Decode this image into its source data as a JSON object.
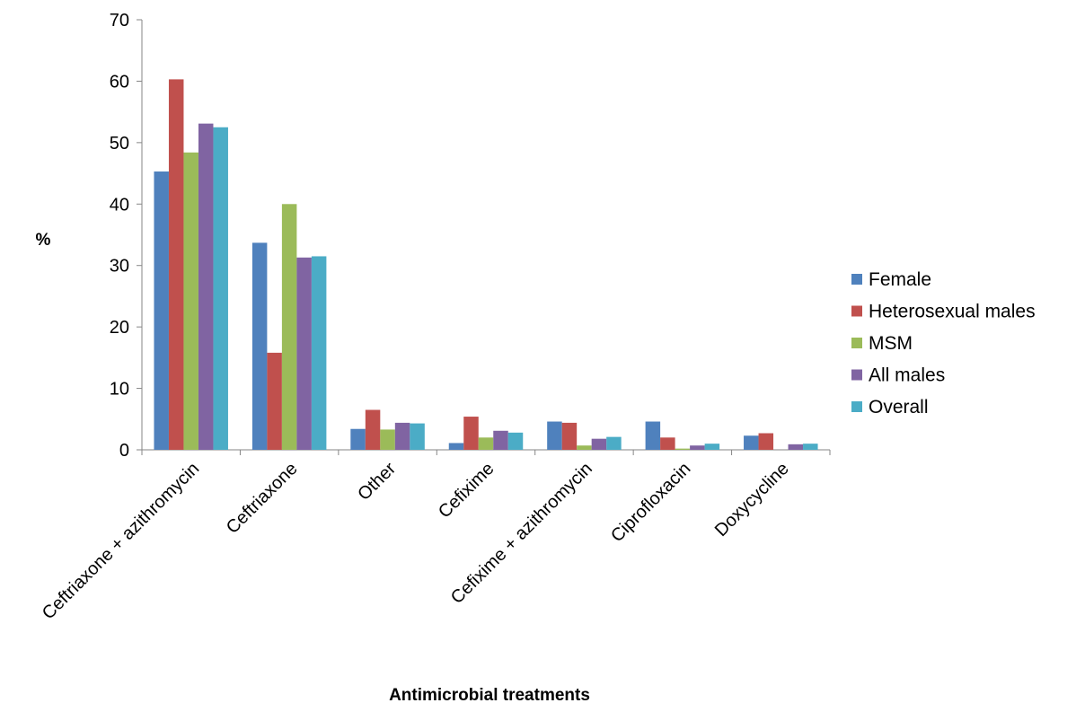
{
  "chart_data": {
    "type": "bar",
    "title": "",
    "xlabel": "Antimicrobial treatments",
    "ylabel": "%",
    "ylim": [
      0,
      70
    ],
    "yticks": [
      0,
      10,
      20,
      30,
      40,
      50,
      60,
      70
    ],
    "grid": false,
    "legend_position": "right",
    "categories": [
      "Ceftriaxone + azithromycin",
      "Ceftriaxone",
      "Other",
      "Cefixime",
      "Cefixime + azithromycin",
      "Ciprofloxacin",
      "Doxycycline"
    ],
    "series": [
      {
        "name": "Female",
        "color": "#4F81BD",
        "values": [
          45.3,
          33.7,
          3.4,
          1.1,
          4.6,
          4.6,
          2.3
        ]
      },
      {
        "name": "Heterosexual males",
        "color": "#C0504D",
        "values": [
          60.3,
          15.8,
          6.5,
          5.4,
          4.4,
          2.0,
          2.7
        ]
      },
      {
        "name": "MSM",
        "color": "#9BBB59",
        "values": [
          48.4,
          40.0,
          3.3,
          2.0,
          0.7,
          0.2,
          0.0
        ]
      },
      {
        "name": "All males",
        "color": "#8064A2",
        "values": [
          53.1,
          31.3,
          4.4,
          3.1,
          1.8,
          0.7,
          0.9
        ]
      },
      {
        "name": "Overall",
        "color": "#4BACC6",
        "values": [
          52.5,
          31.5,
          4.3,
          2.8,
          2.1,
          1.0,
          1.0
        ]
      }
    ]
  }
}
